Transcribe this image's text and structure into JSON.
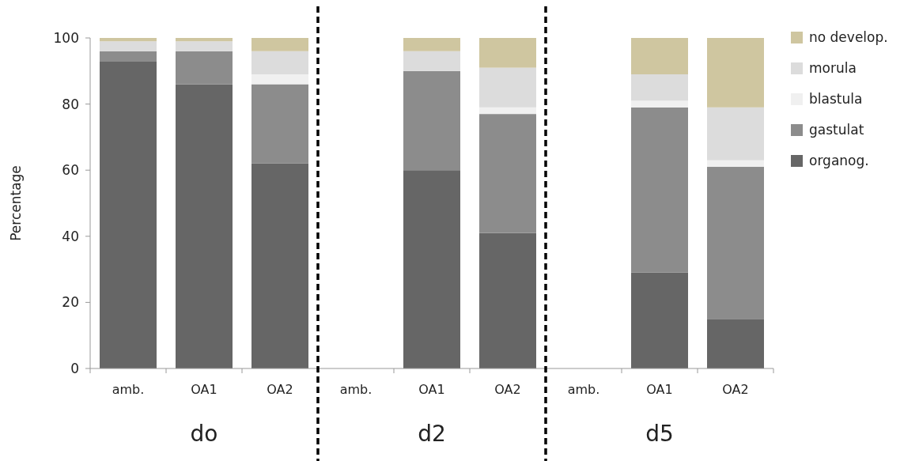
{
  "chart_data": {
    "type": "bar",
    "stacked": true,
    "ylabel": "Percentage",
    "categories": [
      "amb.",
      "OA1",
      "OA2",
      "amb.",
      "OA1",
      "OA2",
      "amb.",
      "OA1",
      "OA2"
    ],
    "annotations": [
      "do",
      "d2",
      "d5"
    ],
    "series": [
      {
        "name": "organog.",
        "color": "#666666",
        "values": [
          93,
          86,
          62,
          null,
          60,
          41,
          null,
          29,
          15
        ]
      },
      {
        "name": "gastulat",
        "color": "#8c8c8c",
        "values": [
          3,
          10,
          24,
          null,
          30,
          36,
          null,
          50,
          46
        ]
      },
      {
        "name": "blastula",
        "color": "#f0f0f0",
        "values": [
          0,
          0,
          3,
          null,
          0,
          2,
          null,
          2,
          2
        ]
      },
      {
        "name": "morula",
        "color": "#dcdcdc",
        "values": [
          3,
          3,
          7,
          null,
          6,
          12,
          null,
          8,
          16
        ]
      },
      {
        "name": "no develop.",
        "color": "#cfc6a0",
        "values": [
          1,
          1,
          4,
          null,
          4,
          9,
          null,
          11,
          21
        ]
      }
    ],
    "ylim": [
      0,
      100
    ],
    "yticks": [
      0,
      20,
      40,
      60,
      80,
      100
    ],
    "legend": "right"
  }
}
